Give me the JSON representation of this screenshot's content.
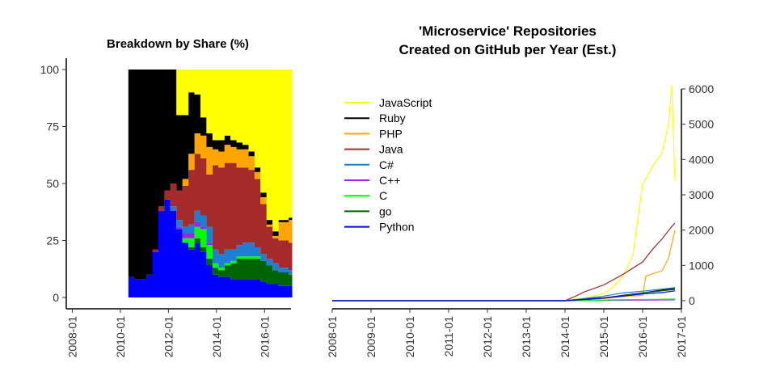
{
  "chart_data": [
    {
      "type": "area",
      "stacked": true,
      "title": "Breakdown by Share (%)",
      "xlabel": "",
      "ylabel": "",
      "x_tick_labels": [
        "2008-01",
        "2010-01",
        "2012-01",
        "2014-01",
        "2016-01"
      ],
      "y_ticks": [
        0,
        25,
        50,
        75,
        100
      ],
      "ylim": [
        0,
        100
      ],
      "x_range": [
        "2008-01",
        "2017-01"
      ],
      "grid": false,
      "x": [
        "2010-05",
        "2010-08",
        "2010-11",
        "2011-02",
        "2011-05",
        "2011-08",
        "2011-11",
        "2012-02",
        "2012-05",
        "2012-08",
        "2012-11",
        "2013-02",
        "2013-05",
        "2013-08",
        "2013-11",
        "2014-02",
        "2014-05",
        "2014-08",
        "2014-11",
        "2015-02",
        "2015-05",
        "2015-08",
        "2015-11",
        "2016-02",
        "2016-05",
        "2016-08",
        "2016-11",
        "2017-01"
      ],
      "series": [
        {
          "name": "Python",
          "values": [
            9,
            8,
            8,
            10,
            20,
            38,
            43,
            38,
            30,
            24,
            21,
            24,
            20,
            14,
            10,
            9,
            9,
            8,
            8,
            8,
            8,
            8,
            7,
            6,
            6,
            5,
            5,
            5
          ]
        },
        {
          "name": "go",
          "values": [
            0,
            0,
            0,
            0,
            0,
            0,
            0,
            0,
            0,
            0,
            1,
            2,
            2,
            3,
            3,
            3,
            5,
            7,
            9,
            9,
            9,
            9,
            9,
            8,
            6,
            6,
            6,
            5
          ]
        },
        {
          "name": "C",
          "values": [
            0,
            0,
            0,
            0,
            0,
            0,
            0,
            0,
            0,
            2,
            4,
            5,
            8,
            6,
            2,
            1,
            1,
            1,
            1,
            1,
            1,
            1,
            0,
            0,
            0,
            0,
            0,
            0
          ]
        },
        {
          "name": "C++",
          "values": [
            0,
            0,
            0,
            0,
            0,
            0,
            0,
            0,
            1,
            2,
            2,
            2,
            1,
            1,
            0,
            0,
            0,
            0,
            0,
            0,
            0,
            0,
            0,
            0,
            0,
            0,
            0,
            0
          ]
        },
        {
          "name": "C#",
          "values": [
            0,
            0,
            0,
            0,
            0,
            0,
            0,
            2,
            3,
            3,
            4,
            5,
            5,
            7,
            6,
            6,
            6,
            5,
            5,
            6,
            6,
            4,
            3,
            3,
            3,
            2,
            2,
            2
          ]
        },
        {
          "name": "Java",
          "values": [
            0,
            0,
            0,
            0,
            1,
            2,
            4,
            10,
            13,
            18,
            24,
            25,
            25,
            23,
            37,
            38,
            38,
            38,
            34,
            33,
            32,
            30,
            22,
            14,
            11,
            12,
            12,
            12
          ]
        },
        {
          "name": "PHP",
          "values": [
            0,
            0,
            0,
            0,
            0,
            0,
            0,
            0,
            0,
            3,
            7,
            9,
            10,
            12,
            7,
            7,
            8,
            7,
            8,
            8,
            6,
            3,
            3,
            1,
            1,
            8,
            8,
            10
          ]
        },
        {
          "name": "Ruby",
          "values": [
            91,
            92,
            92,
            90,
            79,
            60,
            53,
            50,
            33,
            28,
            27,
            17,
            8,
            6,
            4,
            5,
            4,
            3,
            3,
            2,
            2,
            2,
            2,
            2,
            2,
            1,
            1,
            1
          ]
        },
        {
          "name": "JavaScript",
          "values": [
            0,
            0,
            0,
            0,
            0,
            0,
            0,
            0,
            20,
            20,
            10,
            11,
            21,
            28,
            31,
            31,
            29,
            31,
            32,
            33,
            36,
            43,
            54,
            66,
            71,
            66,
            66,
            65
          ]
        }
      ],
      "colors": {
        "JavaScript": "#ffff00",
        "Ruby": "#000000",
        "PHP": "#ffa500",
        "Java": "#a52a2a",
        "C#": "#1e7fd2",
        "C++": "#a020f0",
        "C": "#00ff00",
        "go": "#006400",
        "Python": "#0000ff"
      }
    },
    {
      "type": "line",
      "title": "'Microservice' Repositories Created on GitHub per Year (Est.)",
      "title_lines": [
        "'Microservice' Repositories",
        "Created on GitHub per Year (Est.)"
      ],
      "xlabel": "",
      "ylabel": "",
      "x_tick_labels": [
        "2008-01",
        "2009-01",
        "2010-01",
        "2011-01",
        "2012-01",
        "2013-01",
        "2014-01",
        "2015-01",
        "2016-01",
        "2017-01"
      ],
      "y_ticks": [
        0,
        1000,
        2000,
        3000,
        4000,
        5000,
        6000
      ],
      "ylim": [
        0,
        6000
      ],
      "y_axis_side": "right",
      "legend_position": "top-left",
      "grid": false,
      "series": [
        {
          "name": "JavaScript",
          "color": "#ffff00",
          "points": [
            [
              "2008-01",
              0
            ],
            [
              "2014-01",
              0
            ],
            [
              "2014-07",
              80
            ],
            [
              "2015-01",
              200
            ],
            [
              "2015-04",
              400
            ],
            [
              "2015-07",
              700
            ],
            [
              "2015-10",
              1300
            ],
            [
              "2016-01",
              3300
            ],
            [
              "2016-04",
              3800
            ],
            [
              "2016-07",
              4200
            ],
            [
              "2016-09",
              5000
            ],
            [
              "2016-10",
              6100
            ],
            [
              "2016-11",
              3400
            ]
          ]
        },
        {
          "name": "Ruby",
          "color": "#000000",
          "points": [
            [
              "2008-01",
              0
            ],
            [
              "2014-01",
              0
            ],
            [
              "2014-07",
              50
            ],
            [
              "2015-01",
              80
            ],
            [
              "2015-07",
              150
            ],
            [
              "2016-01",
              220
            ],
            [
              "2016-07",
              300
            ],
            [
              "2016-11",
              350
            ]
          ]
        },
        {
          "name": "PHP",
          "color": "#ffa500",
          "points": [
            [
              "2008-01",
              0
            ],
            [
              "2014-01",
              0
            ],
            [
              "2015-01",
              60
            ],
            [
              "2015-07",
              120
            ],
            [
              "2016-01",
              150
            ],
            [
              "2016-02",
              700
            ],
            [
              "2016-07",
              850
            ],
            [
              "2016-09",
              1200
            ],
            [
              "2016-11",
              2000
            ]
          ]
        },
        {
          "name": "Java",
          "color": "#a52a2a",
          "points": [
            [
              "2008-01",
              0
            ],
            [
              "2014-01",
              0
            ],
            [
              "2014-04",
              120
            ],
            [
              "2014-07",
              250
            ],
            [
              "2015-01",
              450
            ],
            [
              "2015-07",
              750
            ],
            [
              "2016-01",
              1100
            ],
            [
              "2016-04",
              1450
            ],
            [
              "2016-07",
              1750
            ],
            [
              "2016-10",
              2100
            ],
            [
              "2016-11",
              2200
            ]
          ]
        },
        {
          "name": "C#",
          "color": "#1e7fd2",
          "points": [
            [
              "2008-01",
              0
            ],
            [
              "2014-01",
              0
            ],
            [
              "2014-07",
              60
            ],
            [
              "2015-01",
              130
            ],
            [
              "2015-07",
              220
            ],
            [
              "2016-01",
              270
            ],
            [
              "2016-07",
              330
            ],
            [
              "2016-11",
              370
            ]
          ]
        },
        {
          "name": "C++",
          "color": "#a020f0",
          "points": [
            [
              "2008-01",
              0
            ],
            [
              "2014-01",
              0
            ],
            [
              "2015-01",
              10
            ],
            [
              "2016-01",
              15
            ],
            [
              "2016-11",
              25
            ]
          ]
        },
        {
          "name": "C",
          "color": "#00ff00",
          "points": [
            [
              "2008-01",
              0
            ],
            [
              "2014-01",
              0
            ],
            [
              "2015-01",
              20
            ],
            [
              "2016-01",
              35
            ],
            [
              "2016-11",
              45
            ]
          ]
        },
        {
          "name": "go",
          "color": "#006400",
          "points": [
            [
              "2008-01",
              0
            ],
            [
              "2014-01",
              0
            ],
            [
              "2014-07",
              30
            ],
            [
              "2015-01",
              70
            ],
            [
              "2015-07",
              140
            ],
            [
              "2016-01",
              220
            ],
            [
              "2016-07",
              280
            ],
            [
              "2016-11",
              320
            ]
          ]
        },
        {
          "name": "Python",
          "color": "#0000ff",
          "points": [
            [
              "2008-01",
              0
            ],
            [
              "2014-01",
              0
            ],
            [
              "2014-07",
              40
            ],
            [
              "2015-01",
              80
            ],
            [
              "2015-07",
              130
            ],
            [
              "2016-01",
              190
            ],
            [
              "2016-07",
              230
            ],
            [
              "2016-11",
              280
            ]
          ]
        }
      ]
    }
  ]
}
